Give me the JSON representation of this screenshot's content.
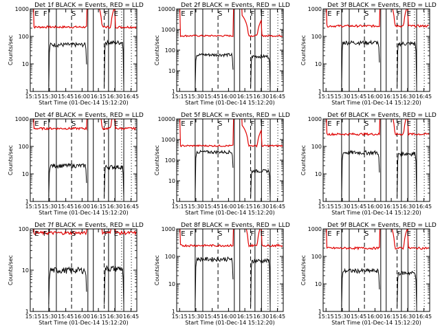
{
  "figure": {
    "description_colors": {
      "events": "#000000",
      "lld": "#e00000"
    }
  },
  "chart_data": [
    {
      "type": "line",
      "title": "Det 1f BLACK = Events, RED = LLD",
      "xlabel": "Start Time (01-Dec-14 15:12:20)",
      "ylabel": "Counts/sec",
      "x_ticks": [
        "15:15",
        "15:30",
        "15:45",
        "16:00",
        "16:15",
        "16:30",
        "16:45"
      ],
      "y_ticks": [
        "1",
        "10",
        "100",
        "1000"
      ],
      "ylim": [
        1,
        1000
      ],
      "y_scale": "log",
      "markers": [
        {
          "label": "E",
          "t": "15:15"
        },
        {
          "label": "F",
          "t": "15:23"
        },
        {
          "label": "S",
          "t": "15:49"
        },
        {
          "label": "F",
          "t": "16:19"
        },
        {
          "label": "E",
          "t": "16:28"
        }
      ],
      "events_level_plateau1": 50,
      "events_level_plateau2": 60,
      "lld_level": 220
    },
    {
      "type": "line",
      "title": "Det 2f BLACK = Events, RED = LLD",
      "xlabel": "Start Time (01-Dec-14 15:12:20)",
      "ylabel": "Counts/sec",
      "x_ticks": [
        "15:15",
        "15:30",
        "15:45",
        "16:00",
        "16:15",
        "16:30",
        "16:45"
      ],
      "y_ticks": [
        "1",
        "10",
        "100",
        "1000",
        "10000"
      ],
      "ylim": [
        1,
        10000
      ],
      "y_scale": "log",
      "markers": [
        {
          "label": "E",
          "t": "15:15"
        },
        {
          "label": "F",
          "t": "15:23"
        },
        {
          "label": "S",
          "t": "15:49"
        },
        {
          "label": "F",
          "t": "16:19"
        },
        {
          "label": "E",
          "t": "16:28"
        }
      ],
      "events_level_plateau1": 60,
      "events_level_plateau2": 50,
      "lld_level": 500
    },
    {
      "type": "line",
      "title": "Det 3f BLACK = Events, RED = LLD",
      "xlabel": "Start Time (01-Dec-14 15:12:20)",
      "ylabel": "Counts/sec",
      "x_ticks": [
        "15:15",
        "15:30",
        "15:45",
        "16:00",
        "16:15",
        "16:30",
        "16:45"
      ],
      "y_ticks": [
        "1",
        "10",
        "100",
        "1000"
      ],
      "ylim": [
        1,
        1000
      ],
      "y_scale": "log",
      "markers": [
        {
          "label": "E",
          "t": "15:15"
        },
        {
          "label": "F",
          "t": "15:23"
        },
        {
          "label": "S",
          "t": "15:49"
        },
        {
          "label": "F",
          "t": "16:19"
        },
        {
          "label": "E",
          "t": "16:28"
        }
      ],
      "events_level_plateau1": 60,
      "events_level_plateau2": 55,
      "lld_level": 240
    },
    {
      "type": "line",
      "title": "Det 4f BLACK = Events, RED = LLD",
      "xlabel": "Start Time (01-Dec-14 15:12:20)",
      "ylabel": "Counts/sec",
      "x_ticks": [
        "15:15",
        "15:30",
        "15:45",
        "16:00",
        "16:15",
        "16:30",
        "16:45"
      ],
      "y_ticks": [
        "1",
        "10",
        "100",
        "1000"
      ],
      "ylim": [
        1,
        1000
      ],
      "y_scale": "log",
      "markers": [
        {
          "label": "E",
          "t": "15:15"
        },
        {
          "label": "F",
          "t": "15:23"
        },
        {
          "label": "S",
          "t": "15:49"
        },
        {
          "label": "F",
          "t": "16:19"
        },
        {
          "label": "E",
          "t": "16:28"
        }
      ],
      "events_level_plateau1": 20,
      "events_level_plateau2": 18,
      "lld_level": 450
    },
    {
      "type": "line",
      "title": "Det 5f BLACK = Events, RED = LLD",
      "xlabel": "Start Time (01-Dec-14 15:12:20)",
      "ylabel": "Counts/sec",
      "x_ticks": [
        "15:15",
        "15:30",
        "15:45",
        "16:00",
        "16:15",
        "16:30",
        "16:45"
      ],
      "y_ticks": [
        "1",
        "10",
        "100",
        "1000",
        "10000"
      ],
      "ylim": [
        1,
        10000
      ],
      "y_scale": "log",
      "markers": [
        {
          "label": "E",
          "t": "15:15"
        },
        {
          "label": "F",
          "t": "15:23"
        },
        {
          "label": "S",
          "t": "15:49"
        },
        {
          "label": "F",
          "t": "16:19"
        },
        {
          "label": "E",
          "t": "16:28"
        }
      ],
      "events_level_plateau1": 250,
      "events_level_plateau2": 30,
      "lld_level": 500
    },
    {
      "type": "line",
      "title": "Det 6f BLACK = Events, RED = LLD",
      "xlabel": "Start Time (01-Dec-14 15:12:20)",
      "ylabel": "Counts/sec",
      "x_ticks": [
        "15:15",
        "15:30",
        "15:45",
        "16:00",
        "16:15",
        "16:30",
        "16:45"
      ],
      "y_ticks": [
        "1",
        "10",
        "100",
        "1000"
      ],
      "ylim": [
        1,
        1000
      ],
      "y_scale": "log",
      "markers": [
        {
          "label": "E",
          "t": "15:15"
        },
        {
          "label": "F",
          "t": "15:23"
        },
        {
          "label": "S",
          "t": "15:49"
        },
        {
          "label": "F",
          "t": "16:19"
        },
        {
          "label": "E",
          "t": "16:28"
        }
      ],
      "events_level_plateau1": 60,
      "events_level_plateau2": 55,
      "lld_level": 280
    },
    {
      "type": "line",
      "title": "Det 7f BLACK = Events, RED = LLD",
      "xlabel": "Start Time (01-Dec-14 15:12:20)",
      "ylabel": "Counts/sec",
      "x_ticks": [
        "15:15",
        "15:30",
        "15:45",
        "16:00",
        "16:15",
        "16:30",
        "16:45"
      ],
      "y_ticks": [
        "1",
        "10",
        "100"
      ],
      "ylim": [
        1,
        100
      ],
      "y_scale": "log",
      "markers": [
        {
          "label": "E",
          "t": "15:15"
        },
        {
          "label": "F",
          "t": "15:23"
        },
        {
          "label": "S",
          "t": "15:49"
        },
        {
          "label": "F",
          "t": "16:19"
        },
        {
          "label": "E",
          "t": "16:28"
        }
      ],
      "events_level_plateau1": 10,
      "events_level_plateau2": 11,
      "lld_level": 80
    },
    {
      "type": "line",
      "title": "Det 8f BLACK = Events, RED = LLD",
      "xlabel": "Start Time (01-Dec-14 15:12:20)",
      "ylabel": "Counts/sec",
      "x_ticks": [
        "15:15",
        "15:30",
        "15:45",
        "16:00",
        "16:15",
        "16:30",
        "16:45"
      ],
      "y_ticks": [
        "1",
        "10",
        "100",
        "1000"
      ],
      "ylim": [
        1,
        1000
      ],
      "y_scale": "log",
      "markers": [
        {
          "label": "E",
          "t": "15:15"
        },
        {
          "label": "F",
          "t": "15:23"
        },
        {
          "label": "S",
          "t": "15:49"
        },
        {
          "label": "F",
          "t": "16:19"
        },
        {
          "label": "E",
          "t": "16:28"
        }
      ],
      "events_level_plateau1": 80,
      "events_level_plateau2": 70,
      "lld_level": 250
    },
    {
      "type": "line",
      "title": "Det 9f BLACK = Events, RED = LLD",
      "xlabel": "Start Time (01-Dec-14 15:12:20)",
      "ylabel": "Counts/sec",
      "x_ticks": [
        "15:15",
        "15:30",
        "15:45",
        "16:00",
        "16:15",
        "16:30",
        "16:45"
      ],
      "y_ticks": [
        "1",
        "10",
        "100",
        "1000"
      ],
      "ylim": [
        1,
        1000
      ],
      "y_scale": "log",
      "markers": [
        {
          "label": "E",
          "t": "15:15"
        },
        {
          "label": "F",
          "t": "15:23"
        },
        {
          "label": "S",
          "t": "15:49"
        },
        {
          "label": "F",
          "t": "16:19"
        },
        {
          "label": "E",
          "t": "16:28"
        }
      ],
      "events_level_plateau1": 30,
      "events_level_plateau2": 25,
      "lld_level": 200
    }
  ]
}
